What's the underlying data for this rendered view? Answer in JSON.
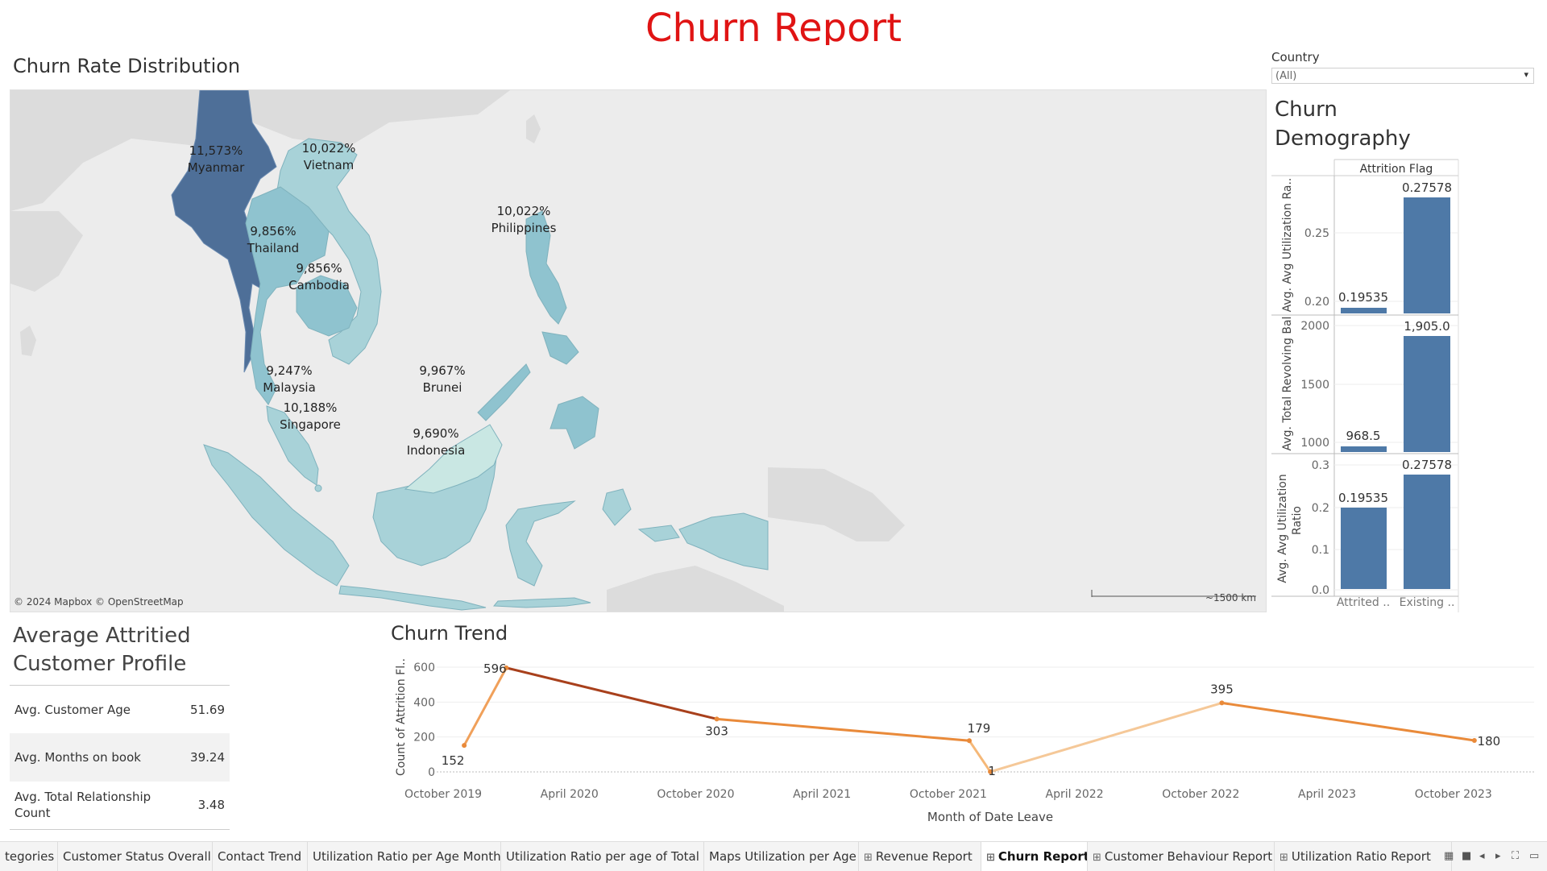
{
  "title": "Churn Report",
  "map": {
    "title": "Churn Rate Distribution",
    "attribution": "© 2024 Mapbox © OpenStreetMap",
    "scale_label": "~1500 km",
    "regions": [
      {
        "value": "11,573%",
        "name": "Myanmar"
      },
      {
        "value": "10,022%",
        "name": "Vietnam"
      },
      {
        "value": "10,022%",
        "name": "Philippines"
      },
      {
        "value": "9,856%",
        "name": "Thailand"
      },
      {
        "value": "9,856%",
        "name": "Cambodia"
      },
      {
        "value": "9,247%",
        "name": "Malaysia"
      },
      {
        "value": "10,188%",
        "name": "Singapore"
      },
      {
        "value": "9,967%",
        "name": "Brunei"
      },
      {
        "value": "9,690%",
        "name": "Indonesia"
      }
    ],
    "colors": {
      "dark": "#4e6f98",
      "mid": "#8fc3cf",
      "light": "#a8d2d8",
      "pale": "#c9e7e3",
      "land": "#dcdcdc",
      "sea": "#ececec"
    }
  },
  "filter": {
    "label": "Country",
    "value": "(All)"
  },
  "demography": {
    "title_line1": "Churn",
    "title_line2": "Demography",
    "column_header": "Attrition Flag",
    "categories": [
      "Attrited ..",
      "Existing .."
    ],
    "color": "#4e79a7",
    "panels": [
      {
        "axis_label": "Avg. Avg Utilization Ra..",
        "values": [
          0.19535,
          0.27578
        ],
        "value_labels": [
          "0.19535",
          "0.27578"
        ],
        "ticks": [
          "0.25",
          "0.20"
        ]
      },
      {
        "axis_label": "Avg. Total Revolving Bal",
        "values": [
          968.5,
          1905.0
        ],
        "value_labels": [
          "968.5",
          "1,905.0"
        ],
        "ticks": [
          "2000",
          "1500",
          "1000"
        ]
      },
      {
        "axis_label_line1": "Avg. Avg Utilization",
        "axis_label_line2": "Ratio",
        "values": [
          0.19535,
          0.27578
        ],
        "value_labels": [
          "0.19535",
          "0.27578"
        ],
        "ticks": [
          "0.3",
          "0.2",
          "0.1",
          "0.0"
        ]
      }
    ]
  },
  "profile": {
    "title_line1": "Average Attritied",
    "title_line2": "Customer Profile",
    "rows": [
      {
        "label": "Avg. Customer Age",
        "value": "51.69"
      },
      {
        "label": "Avg. Months on book",
        "value": "39.24"
      },
      {
        "label_line1": "Avg. Total Relationship",
        "label_line2": "Count",
        "value": "3.48"
      }
    ]
  },
  "chart_data": {
    "type": "line",
    "title": "Churn Trend",
    "xlabel": "Month of Date Leave",
    "ylabel": "Count of Attrition Fl..",
    "x": [
      "2019-11",
      "2020-01",
      "2020-11",
      "2021-11",
      "2021-12",
      "2022-11",
      "2023-11"
    ],
    "values": [
      152,
      596,
      303,
      179,
      1,
      395,
      180
    ],
    "value_labels": [
      "152",
      "596",
      "303",
      "179",
      "1",
      "395",
      "180"
    ],
    "ylim": [
      0,
      600
    ],
    "yticks": [
      "600",
      "400",
      "200",
      "0"
    ],
    "xticks": [
      "October 2019",
      "April 2020",
      "October 2020",
      "April 2021",
      "October 2021",
      "April 2022",
      "October 2022",
      "April 2023",
      "October 2023"
    ],
    "grid": true,
    "line_colors": [
      "#f0a05a",
      "#a8401c",
      "#e98a3a",
      "#f5b878"
    ]
  },
  "tabs": [
    {
      "label": "tegories"
    },
    {
      "label": "Customer Status Overall"
    },
    {
      "label": "Contact Trend"
    },
    {
      "label": "Utilization Ratio per Age Month"
    },
    {
      "label": "Utilization Ratio per age of Total ..."
    },
    {
      "label": "Maps Utilization per Age"
    },
    {
      "label": "Revenue Report",
      "icon": "⊞"
    },
    {
      "label": "Churn Report",
      "icon": "⊞",
      "active": true
    },
    {
      "label": "Customer Behaviour Report",
      "icon": "⊞"
    },
    {
      "label": "Utilization Ratio Report",
      "icon": "⊞"
    }
  ]
}
